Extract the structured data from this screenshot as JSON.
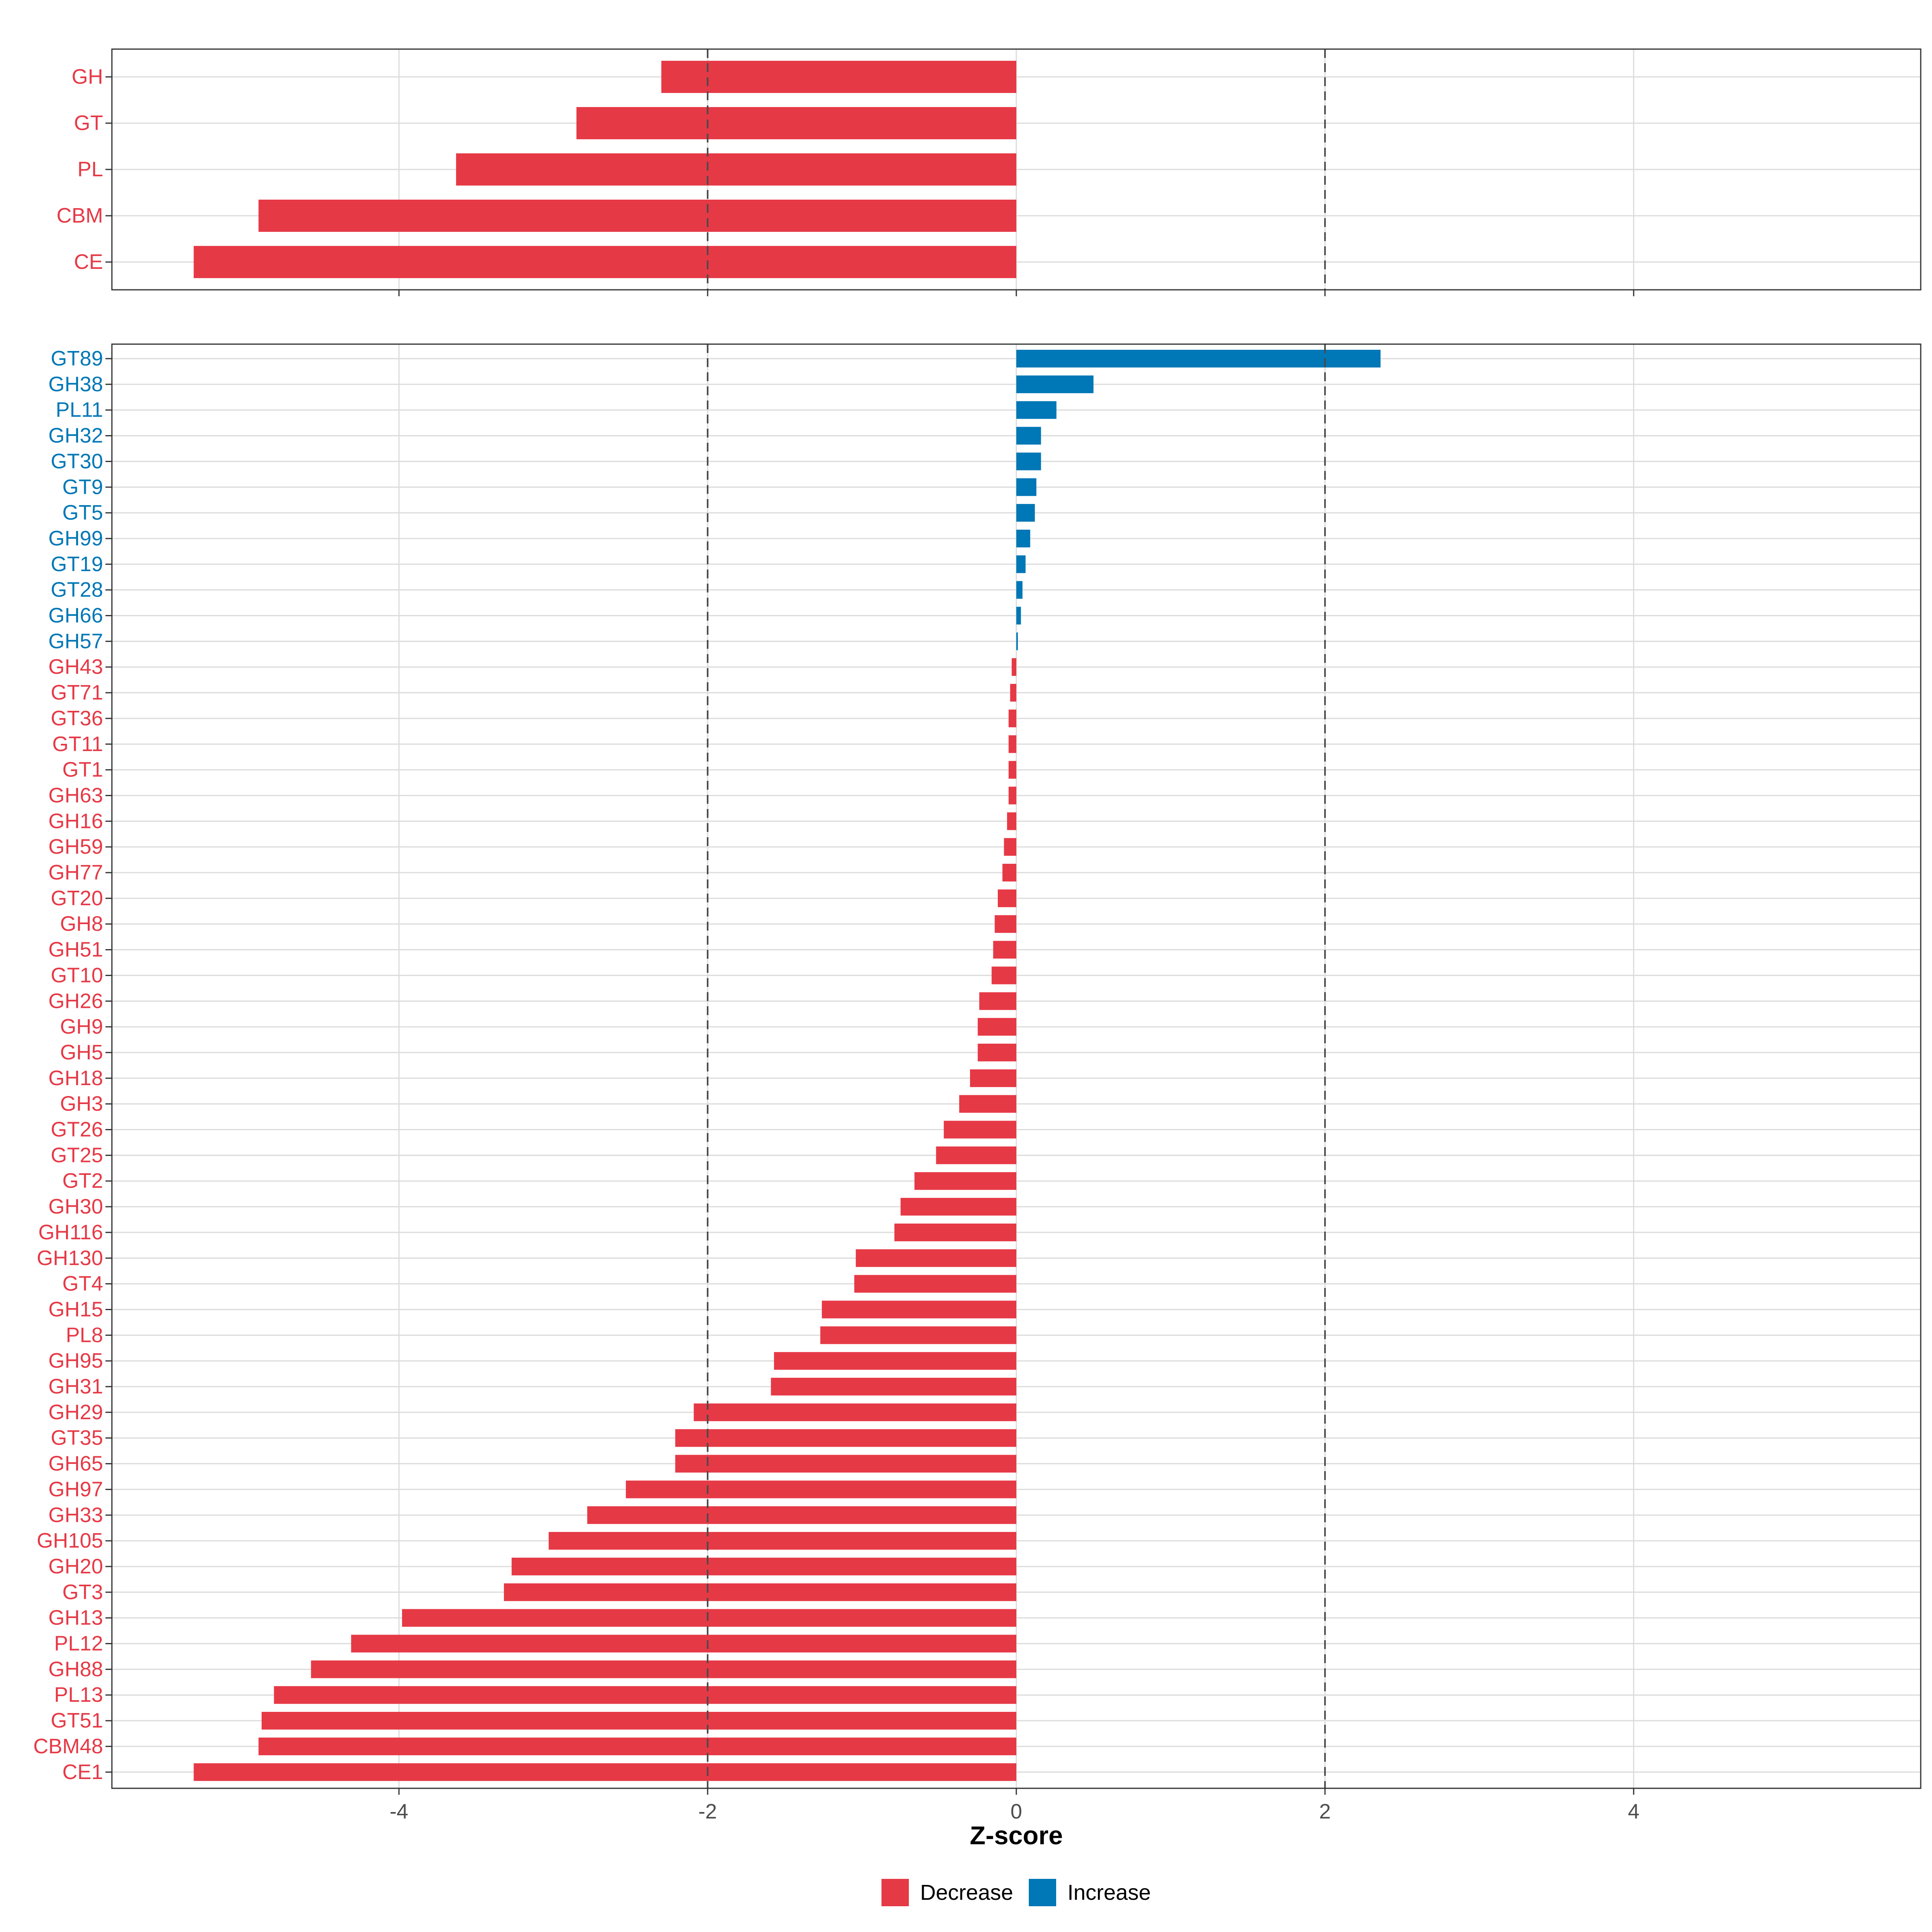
{
  "chart_data": {
    "type": "bar",
    "orientation": "horizontal",
    "xlabel": "Z-score",
    "xlim": [
      -5.86,
      5.86
    ],
    "x_ticks": [
      -4,
      -2,
      0,
      2,
      4
    ],
    "x_tick_labels": [
      "-4",
      "-2",
      "0",
      "2",
      "4"
    ],
    "reference_lines": [
      -2,
      2
    ],
    "legend": {
      "position": "bottom",
      "entries": [
        "Decrease",
        "Increase"
      ]
    },
    "colors": {
      "Decrease": "#E63946",
      "Increase": "#0077B6"
    },
    "panels": [
      {
        "name": "class",
        "categories": [
          "GH",
          "GT",
          "PL",
          "CBM",
          "CE"
        ],
        "values": [
          -2.3,
          -2.85,
          -3.63,
          -4.91,
          -5.33
        ]
      },
      {
        "name": "family",
        "categories": [
          "GT89",
          "GH38",
          "PL11",
          "GH32",
          "GT30",
          "GT9",
          "GT5",
          "GH99",
          "GT19",
          "GT28",
          "GH66",
          "GH57",
          "GH43",
          "GT71",
          "GT36",
          "GT11",
          "GT1",
          "GH63",
          "GH16",
          "GH59",
          "GH77",
          "GT20",
          "GH8",
          "GH51",
          "GT10",
          "GH26",
          "GH9",
          "GH5",
          "GH18",
          "GH3",
          "GT26",
          "GT25",
          "GT2",
          "GH30",
          "GH116",
          "GH130",
          "GT4",
          "GH15",
          "PL8",
          "GH95",
          "GH31",
          "GH29",
          "GT35",
          "GH65",
          "GH97",
          "GH33",
          "GH105",
          "GH20",
          "GT3",
          "GH13",
          "PL12",
          "GH88",
          "PL13",
          "GT51",
          "CBM48",
          "CE1"
        ],
        "values": [
          2.36,
          0.5,
          0.26,
          0.16,
          0.16,
          0.13,
          0.12,
          0.09,
          0.06,
          0.04,
          0.03,
          0.01,
          -0.03,
          -0.04,
          -0.05,
          -0.05,
          -0.05,
          -0.05,
          -0.06,
          -0.08,
          -0.09,
          -0.12,
          -0.14,
          -0.15,
          -0.16,
          -0.24,
          -0.25,
          -0.25,
          -0.3,
          -0.37,
          -0.47,
          -0.52,
          -0.66,
          -0.75,
          -0.79,
          -1.04,
          -1.05,
          -1.26,
          -1.27,
          -1.57,
          -1.59,
          -2.09,
          -2.21,
          -2.21,
          -2.53,
          -2.78,
          -3.03,
          -3.27,
          -3.32,
          -3.98,
          -4.31,
          -4.57,
          -4.81,
          -4.89,
          -4.91,
          -5.33
        ]
      }
    ]
  }
}
